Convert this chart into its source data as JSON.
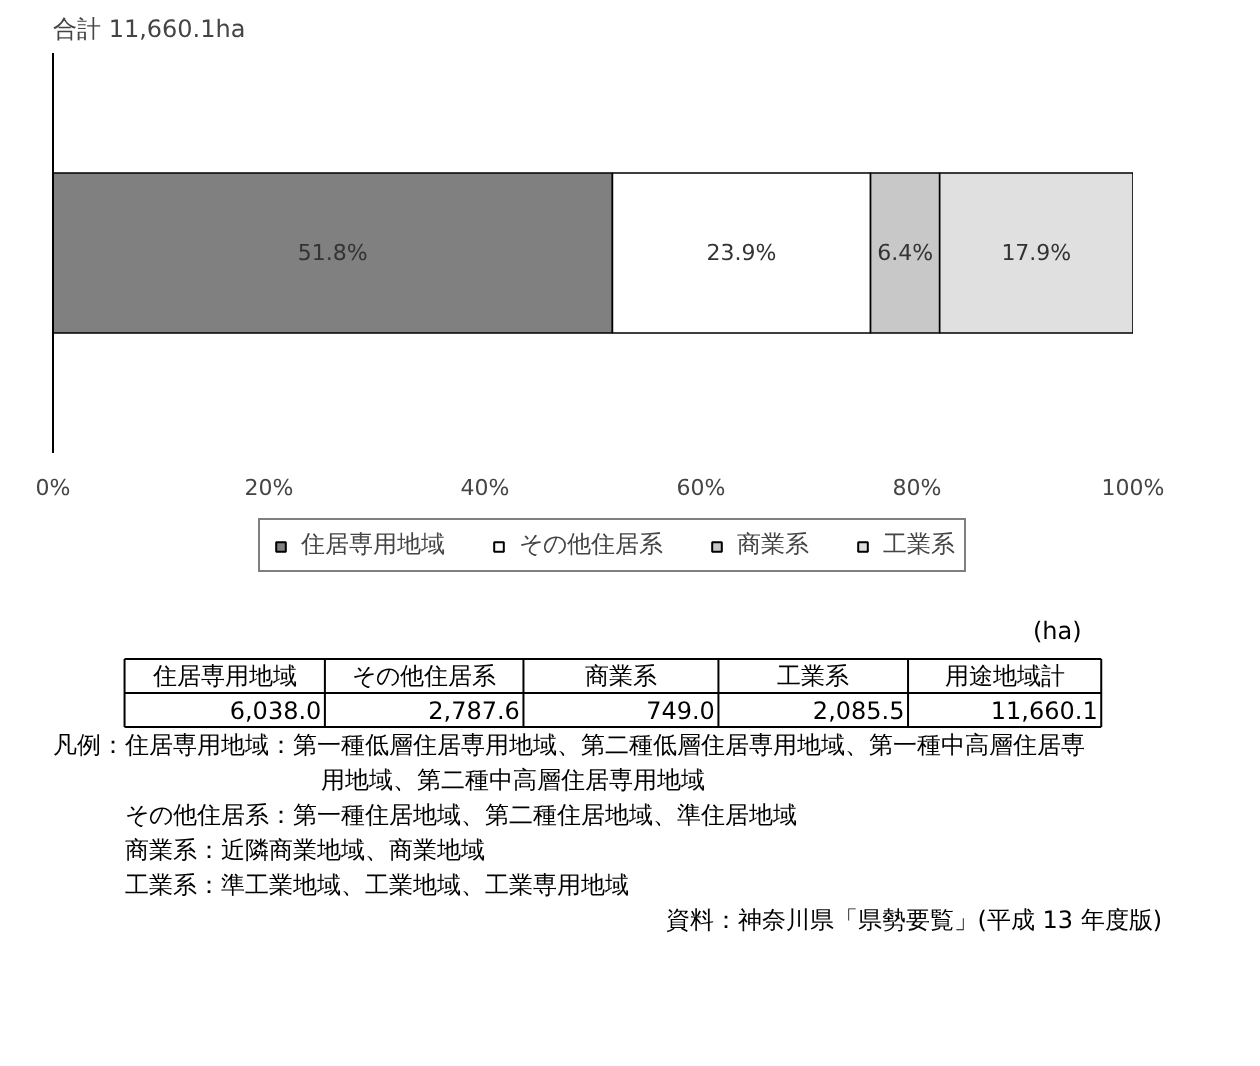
{
  "chart_data": {
    "type": "bar",
    "orientation": "horizontal",
    "stacked": true,
    "title": "合計 11,660.1ha",
    "categories": [
      null
    ],
    "series": [
      {
        "name": "住居専用地域",
        "color": "#808080",
        "values": [
          51.8
        ],
        "value_labels": [
          "51.8%"
        ]
      },
      {
        "name": "その他住居系",
        "color": "#ffffff",
        "values": [
          23.9
        ],
        "value_labels": [
          "23.9%"
        ]
      },
      {
        "name": "商業系",
        "color": "#c8c8c8",
        "values": [
          6.4
        ],
        "value_labels": [
          "6.4%"
        ]
      },
      {
        "name": "工業系",
        "color": "#e0e0e0",
        "values": [
          17.9
        ],
        "value_labels": [
          "17.9%"
        ]
      }
    ],
    "xlim": [
      0,
      100
    ],
    "xticks": [
      {
        "value": 0,
        "label": "0%"
      },
      {
        "value": 20,
        "label": "20%"
      },
      {
        "value": 40,
        "label": "40%"
      },
      {
        "value": 60,
        "label": "60%"
      },
      {
        "value": 80,
        "label": "80%"
      },
      {
        "value": 100,
        "label": "100%"
      }
    ],
    "grid": false,
    "legend": "bottom",
    "annotations": [
      "(ha)",
      "住居専用地域",
      "その他住居系",
      "商業系",
      "工業系",
      "用途地域計",
      "6,038.0",
      "2,787.6",
      "749.0",
      "2,085.5",
      "11,660.1",
      "凡例：住居専用地域：第一種低層住居専用地域、第二種低層住居専用地域、第一種中高層住居専用地域、第二種中高層住居専用地域",
      "その他住居系：第一種住居地域、第二種住居地域、準住居地域",
      "商業系：近隣商業地域、商業地域",
      "工業系：準工業地域、工業地域、工業専用地域",
      "資料：神奈川県「県勢要覧」(平成 13 年度版)"
    ]
  }
}
